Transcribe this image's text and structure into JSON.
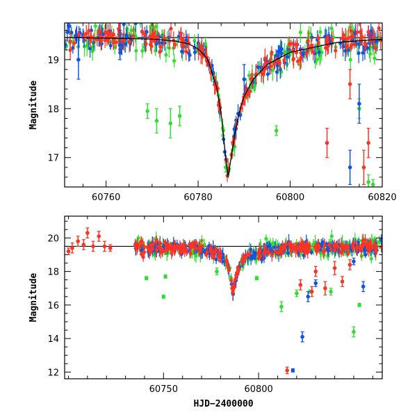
{
  "colors": {
    "green": "#33dd33",
    "blue": "#1155dd",
    "red": "#ff3322",
    "model": "#000000"
  },
  "chart_data": [
    {
      "type": "scatter",
      "title": "",
      "xlabel": "",
      "ylabel": "Magnitude",
      "xlim": [
        60751,
        60820
      ],
      "ylim": [
        19.75,
        16.4
      ],
      "y_inverted": true,
      "x_ticks": [
        60760,
        60780,
        60800,
        60820
      ],
      "x_minor_step": 5,
      "y_ticks": [
        17,
        18,
        19
      ],
      "y_minor_step": 0.2,
      "grid": false,
      "legend": "none",
      "baseline_mag": 19.45,
      "peak": {
        "x": 60786.5,
        "mag": 16.6
      },
      "model_curve": {
        "x": [
          60751,
          60760,
          60770,
          60775,
          60778,
          60780,
          60782,
          60784,
          60785,
          60786,
          60786.5,
          60787,
          60788,
          60789,
          60790,
          60792,
          60795,
          60800,
          60810,
          60820
        ],
        "y": [
          19.45,
          19.44,
          19.42,
          19.38,
          19.32,
          19.22,
          19.02,
          18.45,
          17.9,
          17.0,
          16.6,
          16.9,
          17.5,
          17.95,
          18.25,
          18.6,
          18.9,
          19.15,
          19.35,
          19.42
        ]
      },
      "series": [
        {
          "color": "green",
          "x": [
            60769,
            60771,
            60774,
            60776,
            60786,
            60797,
            60815,
            60817,
            60818
          ],
          "y": [
            17.95,
            17.75,
            17.7,
            17.85,
            16.8,
            17.55,
            18.0,
            16.5,
            16.45
          ],
          "yerr": [
            0.15,
            0.25,
            0.3,
            0.2,
            0.1,
            0.1,
            0.2,
            0.15,
            0.1
          ]
        },
        {
          "color": "blue",
          "x": [
            60754,
            60763,
            60790,
            60813,
            60815
          ],
          "y": [
            19.0,
            19.3,
            18.6,
            16.8,
            18.1
          ],
          "yerr": [
            0.4,
            0.3,
            0.3,
            0.35,
            0.4
          ]
        },
        {
          "color": "red",
          "x": [
            60808,
            60813,
            60816,
            60817
          ],
          "y": [
            17.3,
            18.5,
            16.8,
            17.3
          ],
          "yerr": [
            0.3,
            0.3,
            0.35,
            0.3
          ]
        }
      ]
    },
    {
      "type": "scatter",
      "title": "",
      "xlabel": "HJD−2400000",
      "ylabel": "Magnitude",
      "xlim": [
        60698,
        60865
      ],
      "ylim": [
        21.3,
        11.6
      ],
      "y_inverted": true,
      "x_ticks": [
        60750,
        60800
      ],
      "x_minor_step": 10,
      "y_ticks": [
        12,
        14,
        16,
        18,
        20
      ],
      "y_minor_step": 0.5,
      "grid": false,
      "legend": "none",
      "baseline_mag": 19.5,
      "peak": {
        "x": 60786.5,
        "mag": 16.8
      },
      "series": [
        {
          "color": "green",
          "x": [
            60741,
            60750,
            60751,
            60778,
            60799,
            60812,
            60820,
            60827,
            60838,
            60850,
            60853
          ],
          "y": [
            17.6,
            16.5,
            17.7,
            18.0,
            17.6,
            15.9,
            16.7,
            16.8,
            16.8,
            14.4,
            16.0
          ],
          "yerr": [
            0.1,
            0.1,
            0.1,
            0.2,
            0.1,
            0.3,
            0.2,
            0.1,
            0.2,
            0.3,
            0.1
          ]
        },
        {
          "color": "blue",
          "x": [
            60818,
            60823,
            60826,
            60830,
            60850,
            60855
          ],
          "y": [
            12.1,
            14.1,
            16.5,
            17.3,
            18.6,
            17.1
          ],
          "yerr": [
            0.1,
            0.3,
            0.3,
            0.2,
            0.2,
            0.3
          ]
        },
        {
          "color": "red",
          "x": [
            60815,
            60822,
            60828,
            60830,
            60835,
            60840,
            60844,
            60848
          ],
          "y": [
            12.1,
            17.2,
            16.8,
            18.0,
            17.0,
            18.2,
            17.4,
            18.4
          ],
          "yerr": [
            0.2,
            0.3,
            0.3,
            0.3,
            0.4,
            0.4,
            0.3,
            0.3
          ]
        },
        {
          "color": "red",
          "x": [
            60700,
            60702,
            60705,
            60708,
            60710,
            60713,
            60716,
            60719,
            60722
          ],
          "y": [
            19.2,
            19.4,
            19.8,
            19.6,
            20.3,
            19.5,
            20.1,
            19.5,
            19.4
          ],
          "yerr": [
            0.2,
            0.3,
            0.3,
            0.3,
            0.3,
            0.3,
            0.3,
            0.3,
            0.2
          ]
        }
      ]
    }
  ]
}
